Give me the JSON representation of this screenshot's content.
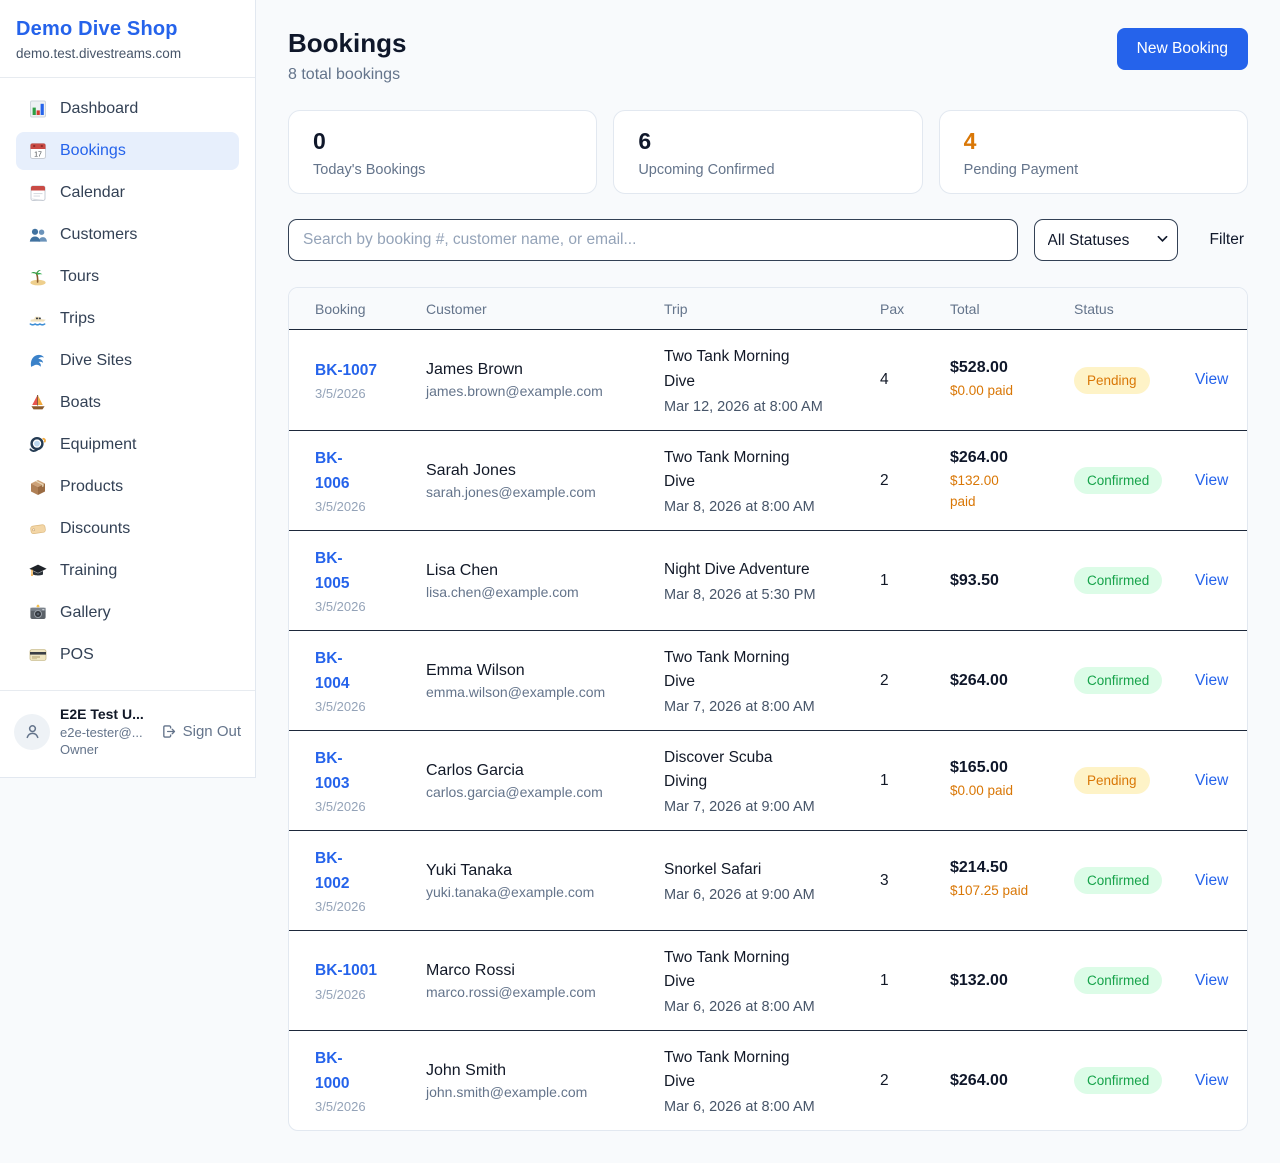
{
  "app": {
    "shop_name": "Demo Dive Shop",
    "shop_domain": "demo.test.divestreams.com"
  },
  "colors": {
    "brand": "#2563eb",
    "pending_fg": "#d97706",
    "pending_bg": "#fef3c7",
    "confirmed_fg": "#16a34a",
    "confirmed_bg": "#dcfce7",
    "accent_orange": "#d97706"
  },
  "sidebar": {
    "items": [
      {
        "label": "Dashboard",
        "icon": "bar-chart-icon",
        "active": false
      },
      {
        "label": "Bookings",
        "icon": "bookings-calendar-icon",
        "active": true
      },
      {
        "label": "Calendar",
        "icon": "tear-off-calendar-icon",
        "active": false
      },
      {
        "label": "Customers",
        "icon": "people-icon",
        "active": false
      },
      {
        "label": "Tours",
        "icon": "island-icon",
        "active": false
      },
      {
        "label": "Trips",
        "icon": "speedboat-icon",
        "active": false
      },
      {
        "label": "Dive Sites",
        "icon": "wave-icon",
        "active": false
      },
      {
        "label": "Boats",
        "icon": "sailboat-icon",
        "active": false
      },
      {
        "label": "Equipment",
        "icon": "dive-mask-icon",
        "active": false
      },
      {
        "label": "Products",
        "icon": "package-icon",
        "active": false
      },
      {
        "label": "Discounts",
        "icon": "tag-icon",
        "active": false
      },
      {
        "label": "Training",
        "icon": "graduation-cap-icon",
        "active": false
      },
      {
        "label": "Gallery",
        "icon": "camera-icon",
        "active": false
      },
      {
        "label": "POS",
        "icon": "credit-card-icon",
        "active": false
      }
    ],
    "user": {
      "name": "E2E Test U...",
      "email": "e2e-tester@...",
      "role": "Owner",
      "sign_out_label": "Sign Out"
    }
  },
  "header": {
    "title": "Bookings",
    "subtitle": "8 total bookings",
    "new_booking_label": "New Booking"
  },
  "stats": [
    {
      "value": "0",
      "label": "Today's Bookings",
      "value_color": "#0f172a"
    },
    {
      "value": "6",
      "label": "Upcoming Confirmed",
      "value_color": "#0f172a"
    },
    {
      "value": "4",
      "label": "Pending Payment",
      "value_color": "#d97706"
    }
  ],
  "controls": {
    "search_placeholder": "Search by booking #, customer name, or email...",
    "status_filter": "All Statuses",
    "filter_label": "Filter"
  },
  "table": {
    "columns": [
      "Booking",
      "Customer",
      "Trip",
      "Pax",
      "Total",
      "Status",
      ""
    ],
    "view_label": "View",
    "statuses": {
      "Pending": {
        "fg": "#d97706",
        "bg": "#fef3c7"
      },
      "Confirmed": {
        "fg": "#16a34a",
        "bg": "#dcfce7"
      }
    },
    "rows": [
      {
        "id": "BK-1007",
        "date": "3/5/2026",
        "customer": "James Brown",
        "email": "james.brown@example.com",
        "trip": "Two Tank Morning\nDive",
        "trip_datetime": "Mar 12, 2026 at 8:00 AM",
        "pax": "4",
        "total": "$528.00",
        "paid": "$0.00 paid",
        "status": "Pending"
      },
      {
        "id": "BK-\n1006",
        "date": "3/5/2026",
        "customer": "Sarah Jones",
        "email": "sarah.jones@example.com",
        "trip": "Two Tank Morning\nDive",
        "trip_datetime": "Mar 8, 2026 at 8:00 AM",
        "pax": "2",
        "total": "$264.00",
        "paid": "$132.00\npaid",
        "status": "Confirmed"
      },
      {
        "id": "BK-\n1005",
        "date": "3/5/2026",
        "customer": "Lisa Chen",
        "email": "lisa.chen@example.com",
        "trip": "Night Dive Adventure",
        "trip_datetime": "Mar 8, 2026 at 5:30 PM",
        "pax": "1",
        "total": "$93.50",
        "paid": "",
        "status": "Confirmed"
      },
      {
        "id": "BK-\n1004",
        "date": "3/5/2026",
        "customer": "Emma Wilson",
        "email": "emma.wilson@example.com",
        "trip": "Two Tank Morning\nDive",
        "trip_datetime": "Mar 7, 2026 at 8:00 AM",
        "pax": "2",
        "total": "$264.00",
        "paid": "",
        "status": "Confirmed"
      },
      {
        "id": "BK-\n1003",
        "date": "3/5/2026",
        "customer": "Carlos Garcia",
        "email": "carlos.garcia@example.com",
        "trip": "Discover Scuba\nDiving",
        "trip_datetime": "Mar 7, 2026 at 9:00 AM",
        "pax": "1",
        "total": "$165.00",
        "paid": "$0.00 paid",
        "status": "Pending"
      },
      {
        "id": "BK-\n1002",
        "date": "3/5/2026",
        "customer": "Yuki Tanaka",
        "email": "yuki.tanaka@example.com",
        "trip": "Snorkel Safari",
        "trip_datetime": "Mar 6, 2026 at 9:00 AM",
        "pax": "3",
        "total": "$214.50",
        "paid": "$107.25 paid",
        "status": "Confirmed"
      },
      {
        "id": "BK-1001",
        "date": "3/5/2026",
        "customer": "Marco Rossi",
        "email": "marco.rossi@example.com",
        "trip": "Two Tank Morning\nDive",
        "trip_datetime": "Mar 6, 2026 at 8:00 AM",
        "pax": "1",
        "total": "$132.00",
        "paid": "",
        "status": "Confirmed"
      },
      {
        "id": "BK-\n1000",
        "date": "3/5/2026",
        "customer": "John Smith",
        "email": "john.smith@example.com",
        "trip": "Two Tank Morning\nDive",
        "trip_datetime": "Mar 6, 2026 at 8:00 AM",
        "pax": "2",
        "total": "$264.00",
        "paid": "",
        "status": "Confirmed"
      }
    ]
  }
}
